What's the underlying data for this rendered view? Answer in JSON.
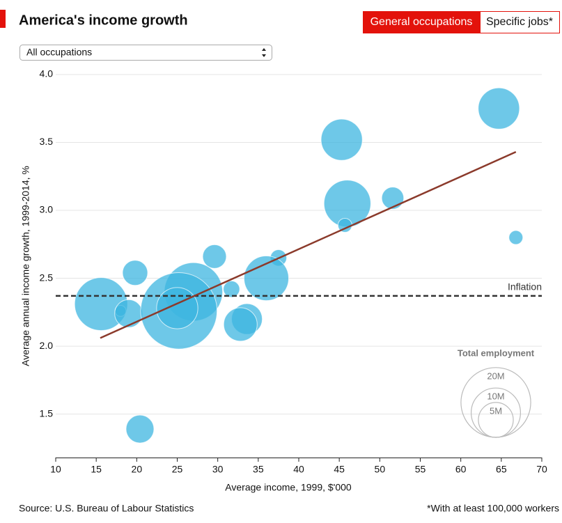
{
  "ui": {
    "tabs": [
      "General occupations",
      "Specific jobs*"
    ],
    "dropdown": "All occupations"
  },
  "chart_data": {
    "type": "scatter",
    "title": "America's income growth",
    "x_label": "Average income, 1999, $'000",
    "y_label": "Average annual income growth, 1999-2014, %",
    "xlim": [
      10,
      70
    ],
    "xticks": [
      10,
      15,
      20,
      25,
      30,
      35,
      40,
      45,
      50,
      55,
      60,
      65,
      70
    ],
    "ylim": [
      1.18,
      4.0
    ],
    "yticks": [
      1.5,
      {
        "value": 2,
        "label": "2.0"
      },
      2.5,
      {
        "value": 3,
        "label": "3.0"
      },
      3.5,
      {
        "value": 4,
        "label": "4.0"
      }
    ],
    "grid": true,
    "series": [
      {
        "color": "#3db6e0",
        "x": [
          64.7,
          45.3,
          46,
          51.6,
          45.7,
          66.8,
          29.6,
          37.5,
          19.8,
          36,
          31.7,
          15.6,
          18,
          19,
          27,
          25.2,
          25,
          33.6,
          32.8,
          20.4
        ],
        "y": [
          3.75,
          3.52,
          3.05,
          3.09,
          2.89,
          2.8,
          2.66,
          2.65,
          2.54,
          2.5,
          2.42,
          2.31,
          2.26,
          2.24,
          2.4,
          2.26,
          2.28,
          2.2,
          2.16,
          1.39
        ],
        "size": [
          7,
          7,
          9,
          2,
          0.8,
          0.8,
          2.3,
          1.1,
          2.6,
          8.2,
          1.1,
          11.5,
          0.5,
          3.2,
          14,
          24,
          7,
          3.9,
          4.6,
          3.2
        ]
      }
    ],
    "trend": {
      "color": "#8b3a2b",
      "x": [
        15.5,
        66.8
      ],
      "y": [
        2.06,
        3.43
      ]
    },
    "inflation": {
      "value": 2.37,
      "label": "Inflation"
    },
    "size_legend": {
      "title": "Total employment",
      "values": [
        {
          "value": 20,
          "label": "20M"
        },
        {
          "value": 10,
          "label": "10M"
        },
        {
          "value": 5,
          "label": "5M"
        }
      ]
    },
    "source": "Source: U.S. Bureau of Labour Statistics",
    "note": "*With at least 100,000 workers"
  }
}
